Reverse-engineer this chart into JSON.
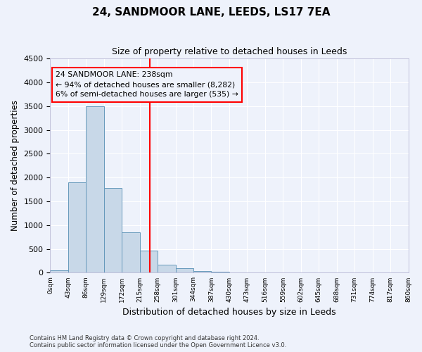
{
  "title": "24, SANDMOOR LANE, LEEDS, LS17 7EA",
  "subtitle": "Size of property relative to detached houses in Leeds",
  "xlabel": "Distribution of detached houses by size in Leeds",
  "ylabel": "Number of detached properties",
  "bin_labels": [
    "0sqm",
    "43sqm",
    "86sqm",
    "129sqm",
    "172sqm",
    "215sqm",
    "258sqm",
    "301sqm",
    "344sqm",
    "387sqm",
    "430sqm",
    "473sqm",
    "516sqm",
    "559sqm",
    "602sqm",
    "645sqm",
    "688sqm",
    "731sqm",
    "774sqm",
    "817sqm",
    "860sqm"
  ],
  "bar_values": [
    50,
    1900,
    3500,
    1780,
    850,
    460,
    175,
    90,
    40,
    15,
    5,
    0,
    0,
    0,
    0,
    0,
    0,
    0,
    0,
    0
  ],
  "bar_color": "#c8d8e8",
  "bar_edge_color": "#6699bb",
  "vline_x": 5.58,
  "vline_color": "red",
  "ylim": [
    0,
    4500
  ],
  "yticks": [
    0,
    500,
    1000,
    1500,
    2000,
    2500,
    3000,
    3500,
    4000,
    4500
  ],
  "annotation_line1": "24 SANDMOOR LANE: 238sqm",
  "annotation_line2": "← 94% of detached houses are smaller (8,282)",
  "annotation_line3": "6% of semi-detached houses are larger (535) →",
  "annotation_box_color": "red",
  "bg_color": "#eef2fb",
  "grid_color": "white",
  "footer_line1": "Contains HM Land Registry data © Crown copyright and database right 2024.",
  "footer_line2": "Contains public sector information licensed under the Open Government Licence v3.0."
}
